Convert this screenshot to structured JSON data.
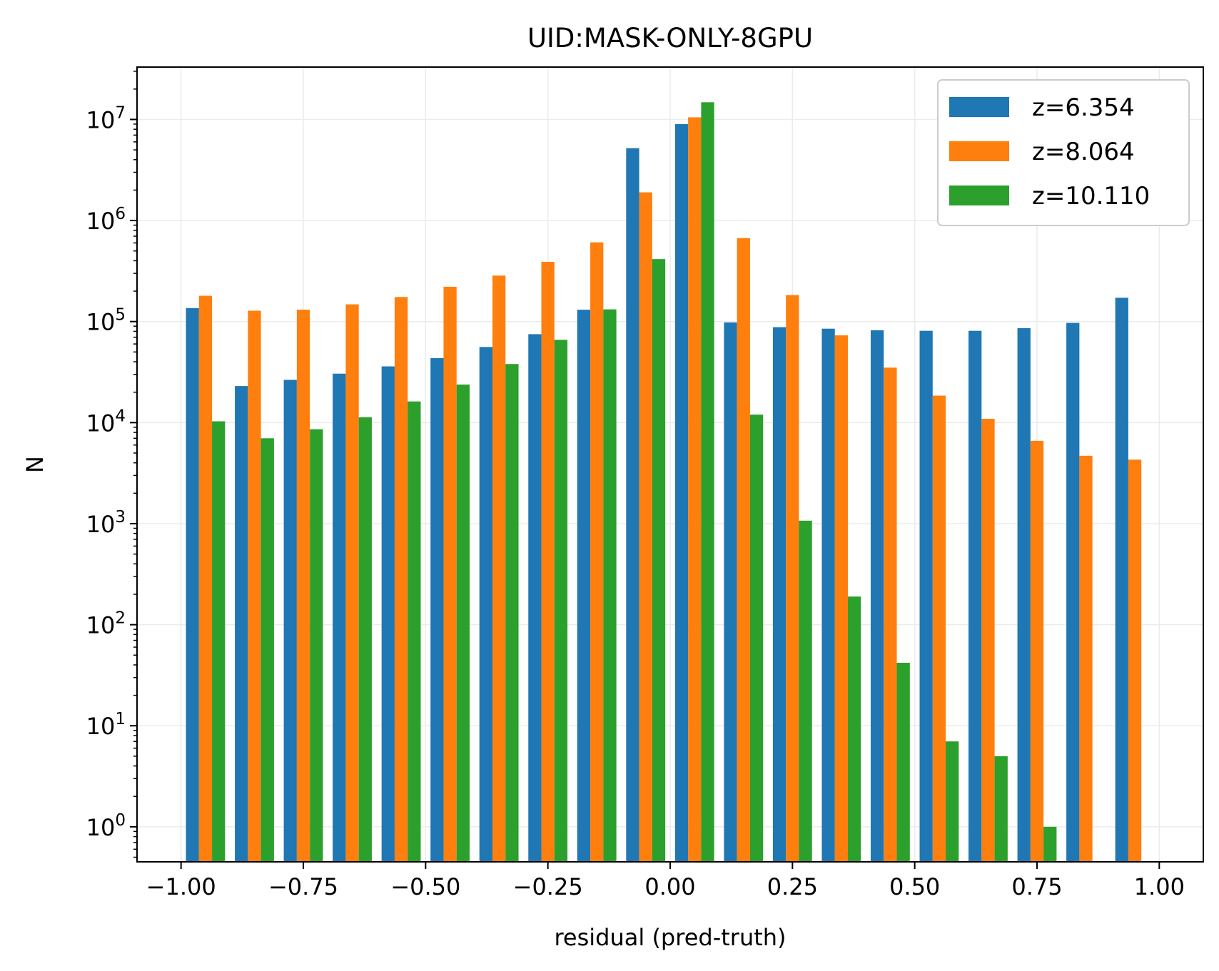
{
  "chart_data": {
    "type": "bar",
    "title": "UID:MASK-ONLY-8GPU",
    "xlabel": "residual (pred-truth)",
    "ylabel": "N",
    "yscale": "log",
    "xlim": [
      -1.09,
      1.09
    ],
    "ylim": [
      0.45,
      33000000
    ],
    "grid": true,
    "legend_position": "top-right",
    "bin_edges": [
      -1.0,
      -0.9,
      -0.8,
      -0.7,
      -0.6,
      -0.5,
      -0.4,
      -0.3,
      -0.2,
      -0.1,
      0.0,
      0.1,
      0.2,
      0.3,
      0.4,
      0.5,
      0.6,
      0.7,
      0.8,
      0.9,
      1.0
    ],
    "x_ticks": [
      -1.0,
      -0.75,
      -0.5,
      -0.25,
      0.0,
      0.25,
      0.5,
      0.75,
      1.0
    ],
    "x_tick_labels": [
      "−1.00",
      "−0.75",
      "−0.50",
      "−0.25",
      "0.00",
      "0.25",
      "0.50",
      "0.75",
      "1.00"
    ],
    "y_ticks": [
      1,
      10,
      100,
      1000,
      10000,
      100000,
      1000000,
      10000000
    ],
    "y_tick_exponents": [
      "0",
      "1",
      "2",
      "3",
      "4",
      "5",
      "6",
      "7"
    ],
    "y_tick_base": "10",
    "series": [
      {
        "name": "z=6.354",
        "color": "#1f77b4",
        "values": [
          136000,
          23000,
          26500,
          30500,
          36000,
          43500,
          56000,
          75000,
          131000,
          5200000,
          9000000,
          98000,
          88000,
          85000,
          82000,
          81000,
          81000,
          86000,
          97000,
          172000
        ]
      },
      {
        "name": "z=8.064",
        "color": "#ff7f0e",
        "values": [
          180000,
          128000,
          131000,
          148000,
          175000,
          221000,
          285000,
          390000,
          608000,
          1900000,
          10500000,
          670000,
          183000,
          73000,
          35000,
          18500,
          10900,
          6600,
          4700,
          4300
        ]
      },
      {
        "name": "z=10.110",
        "color": "#2ca02c",
        "values": [
          10300,
          7000,
          8600,
          11300,
          16200,
          23800,
          38000,
          66000,
          132000,
          415000,
          14800000,
          12000,
          1070,
          190,
          42,
          7,
          5,
          1,
          0,
          0
        ]
      }
    ]
  }
}
